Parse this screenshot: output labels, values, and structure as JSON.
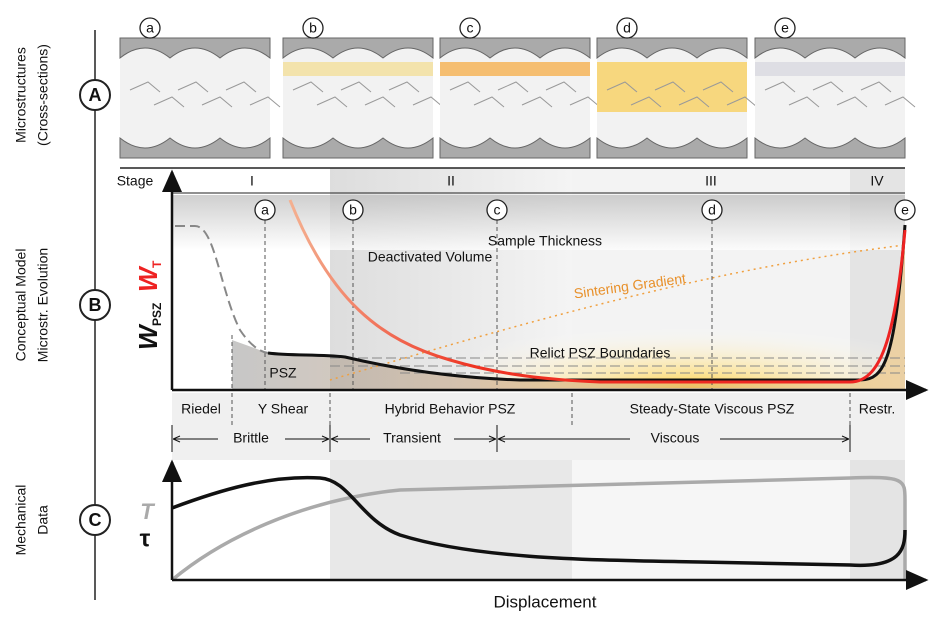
{
  "panels": [
    {
      "letter": "A",
      "label_lines": [
        "Microstructures",
        "(Cross-sections)"
      ]
    },
    {
      "letter": "B",
      "label_lines": [
        "Conceptual Model",
        "Microstr. Evolution"
      ]
    },
    {
      "letter": "C",
      "label_lines": [
        "Mechanical",
        "Data"
      ]
    }
  ],
  "microstructures": [
    "a",
    "b",
    "c",
    "d",
    "e"
  ],
  "stage_header": "Stage",
  "stages": [
    "I",
    "II",
    "III",
    "IV"
  ],
  "markers": [
    "a",
    "b",
    "c",
    "d",
    "e"
  ],
  "annotations": {
    "sample_thickness": "Sample Thickness",
    "deactivated_volume": "Deactivated Volume",
    "sintering_gradient": "Sintering Gradient",
    "relict_boundaries": "Relict PSZ Boundaries",
    "psz": "PSZ"
  },
  "y_label": {
    "w_psz": "W",
    "w_psz_sub": "PSZ",
    "w_t": "W",
    "w_t_sub": "T"
  },
  "zones": [
    "Riedel",
    "Y Shear",
    "Hybrid Behavior PSZ",
    "Steady-State Viscous PSZ",
    "Restr."
  ],
  "regimes": [
    "Brittle",
    "Transient",
    "Viscous"
  ],
  "tau_label": "τ",
  "t_label": "T",
  "x_label": "Displacement"
}
